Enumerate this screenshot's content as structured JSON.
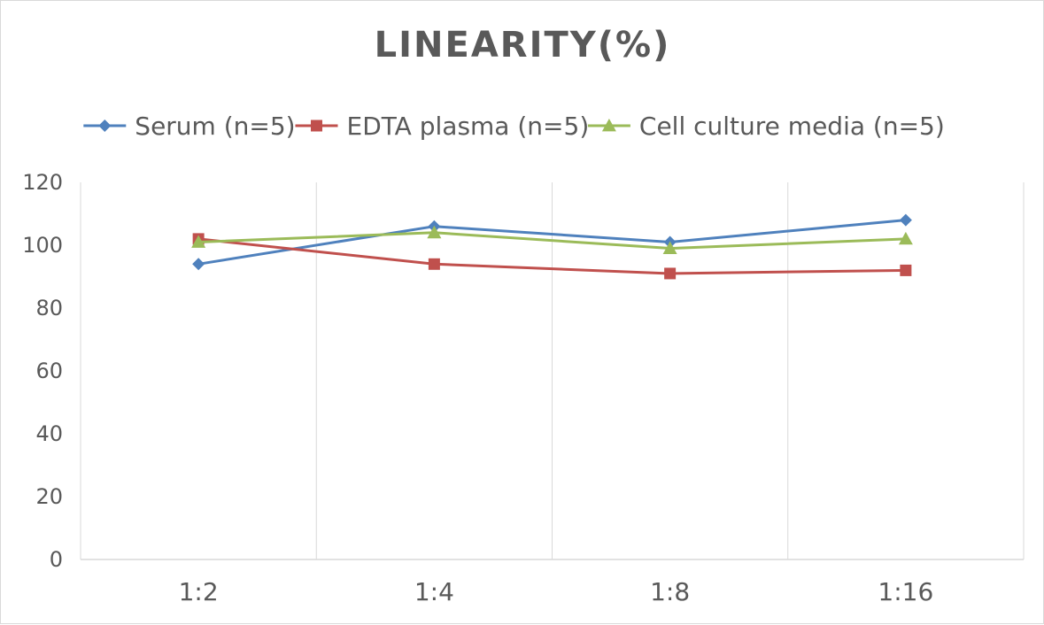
{
  "chart_data": {
    "type": "line",
    "title": "LINEARITY(%)",
    "xlabel": "",
    "ylabel": "",
    "categories": [
      "1:2",
      "1:4",
      "1:8",
      "1:16"
    ],
    "ylim": [
      0,
      120
    ],
    "yticks": [
      0,
      20,
      40,
      60,
      80,
      100,
      120
    ],
    "grid": {
      "vertical": true,
      "horizontal": false
    },
    "legend": "top",
    "series": [
      {
        "name": "Serum (n=5)",
        "color": "#4f81bd",
        "marker": "diamond",
        "values": [
          94,
          106,
          101,
          108
        ]
      },
      {
        "name": "EDTA plasma (n=5)",
        "color": "#c0504d",
        "marker": "square",
        "values": [
          102,
          94,
          91,
          92
        ]
      },
      {
        "name": "Cell culture media (n=5)",
        "color": "#9bbb59",
        "marker": "triangle",
        "values": [
          101,
          104,
          99,
          102
        ]
      }
    ]
  }
}
